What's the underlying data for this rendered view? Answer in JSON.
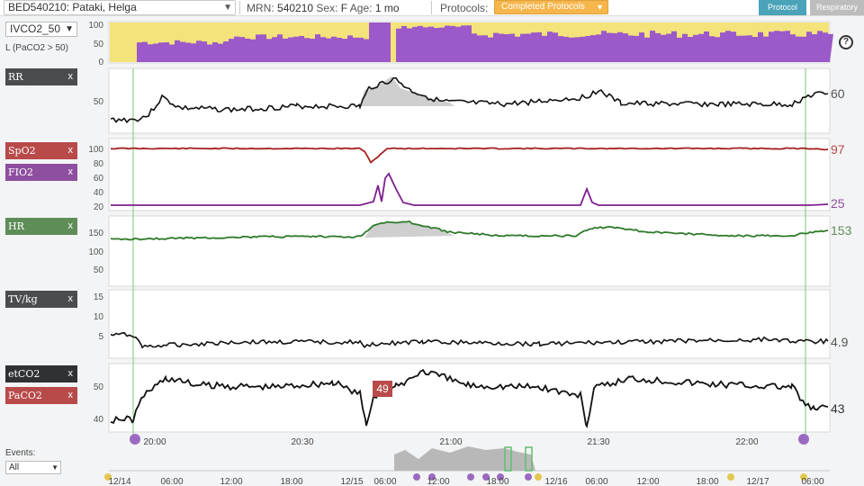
{
  "header": {
    "patient": "BED540210: Pataki, Helga",
    "mrn_label": "MRN:",
    "mrn": "540210",
    "sex_label": "Sex:",
    "sex": "F",
    "age_label": "Age:",
    "age": "1 mo",
    "protocols_label": "Protocols:",
    "protocols_selected": "Completed Protocols",
    "tab_protocol": "Protocol",
    "tab_respiratory": "Respiratory"
  },
  "sidebar": {
    "indicator_selected": "IVCO2_50",
    "indicator_sub": "L (PaCO2 > 50)",
    "events_label": "Events:",
    "events_selected": "All",
    "close_glyph": "x"
  },
  "params": [
    {
      "key": "rr",
      "label": "RR",
      "color": "#4a4d50"
    },
    {
      "key": "spo2",
      "label": "SpO2",
      "color": "#b84a4a"
    },
    {
      "key": "fio2",
      "label": "FIO2",
      "color": "#8e4fa0"
    },
    {
      "key": "hr",
      "label": "HR",
      "color": "#5e8d58"
    },
    {
      "key": "tvkg",
      "label": "TV/kg",
      "color": "#4a4d50"
    },
    {
      "key": "etco2",
      "label": "etCO2",
      "color": "#2f3133"
    },
    {
      "key": "paco2",
      "label": "PaCO2",
      "color": "#b84a4a"
    }
  ],
  "current_values": {
    "rr": "60",
    "spo2": "97",
    "fio2": "25",
    "hr": "153",
    "tvkg": "4.9",
    "etco2": "43",
    "paco2_marker": "49"
  },
  "y_ticks": {
    "indicator": [
      "100",
      "50",
      "0"
    ],
    "rr": [
      "50"
    ],
    "spo2_fio2": [
      "100",
      "80",
      "60",
      "40",
      "20"
    ],
    "hr": [
      "150",
      "100",
      "50"
    ],
    "tvkg": [
      "15",
      "10",
      "5"
    ],
    "co2": [
      "50",
      "40"
    ]
  },
  "time_axis": [
    "20:00",
    "20:30",
    "21:00",
    "21:30",
    "22:00"
  ],
  "overview_axis": [
    "12/14",
    "06:00",
    "12:00",
    "18:00",
    "12/15",
    "06:00",
    "12:00",
    "18:00",
    "12/16",
    "06:00",
    "12:00",
    "18:00",
    "12/17",
    "06:00"
  ],
  "colors": {
    "indicator_high": "#9b59c9",
    "indicator_low": "#f4e27a",
    "rr_line": "#111111",
    "spo2_line": "#a62020",
    "fio2_line": "#7e1f8f",
    "hr_line": "#2f7a2a",
    "tvkg_line": "#111111",
    "co2_line": "#111111",
    "marker_green": "#5fbf6e",
    "event_purple": "#9b6ac0",
    "event_yellow": "#e3c850"
  }
}
